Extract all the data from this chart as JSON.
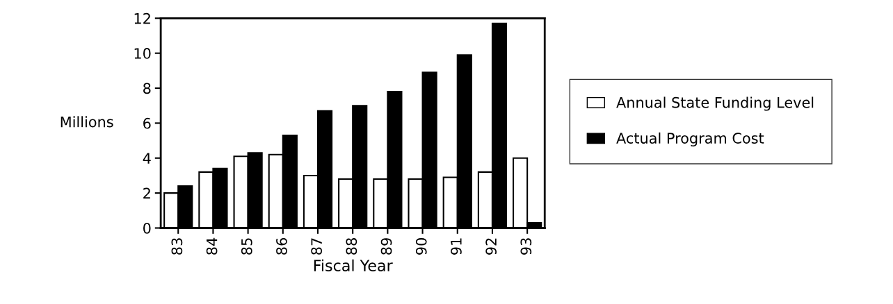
{
  "chart_data": {
    "type": "bar",
    "xlabel": "Fiscal Year",
    "ylabel": "Millions",
    "categories": [
      "83",
      "84",
      "85",
      "86",
      "87",
      "88",
      "89",
      "90",
      "91",
      "92",
      "93"
    ],
    "series": [
      {
        "name": "Annual State Funding Level",
        "color": "#ffffff",
        "values": [
          2.0,
          3.2,
          4.1,
          4.2,
          3.0,
          2.8,
          2.8,
          2.8,
          2.9,
          3.2,
          4.0
        ]
      },
      {
        "name": "Actual Program Cost",
        "color": "#000000",
        "values": [
          2.4,
          3.4,
          4.3,
          5.3,
          6.7,
          7.0,
          7.8,
          8.9,
          9.9,
          11.7,
          0.3
        ]
      }
    ],
    "ylim": [
      0,
      12
    ],
    "yticks": [
      0,
      2,
      4,
      6,
      8,
      10,
      12
    ],
    "legend": "right",
    "grid": false
  }
}
